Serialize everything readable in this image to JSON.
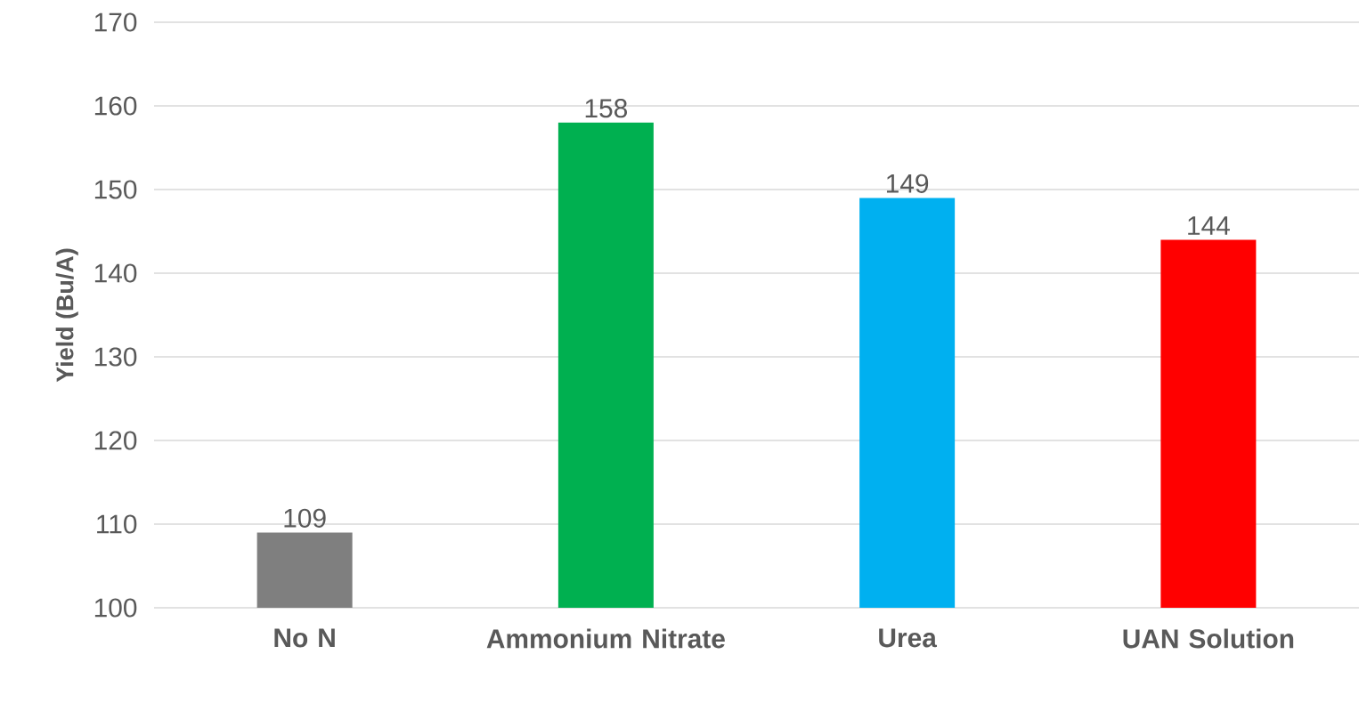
{
  "chart_data": {
    "type": "bar",
    "ylabel": "Yield (Bu/A)",
    "categories": [
      "No N",
      "Ammonium Nitrate",
      "Urea",
      "UAN Solution"
    ],
    "values": [
      109,
      158,
      149,
      144
    ],
    "colors": [
      "#7f7f7f",
      "#00b050",
      "#00b0f0",
      "#ff0000"
    ],
    "ylim": [
      100,
      170
    ],
    "yticks": [
      100,
      110,
      120,
      130,
      140,
      150,
      160,
      170
    ],
    "grid": "y",
    "data_labels": true
  }
}
